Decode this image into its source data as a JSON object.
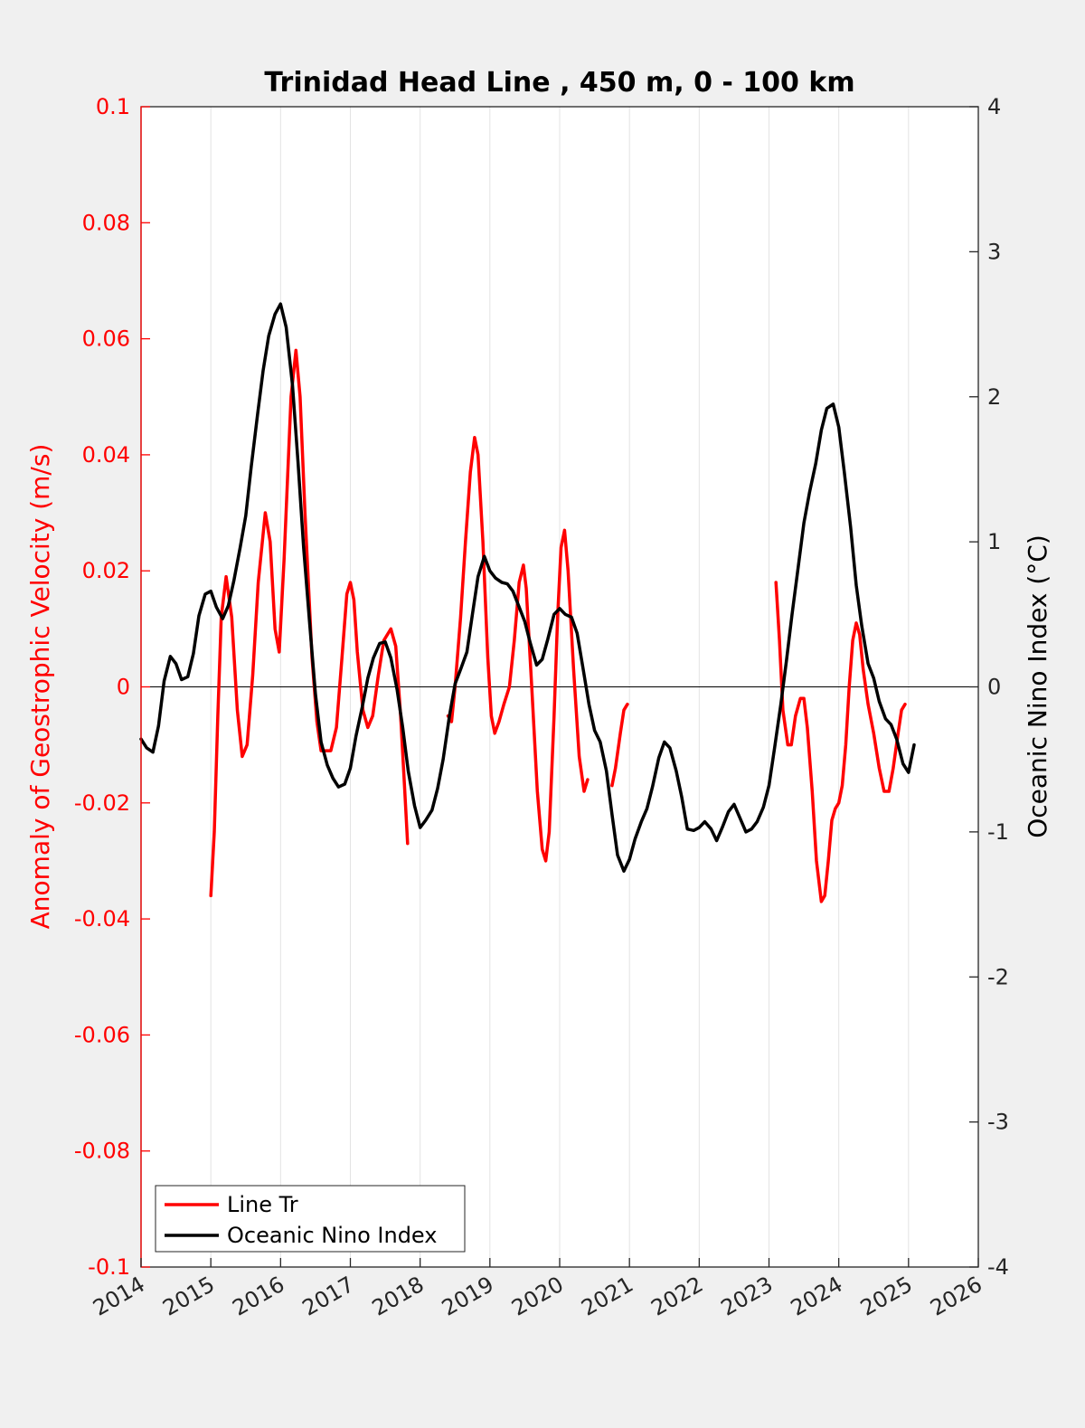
{
  "chart_data": {
    "type": "line",
    "title": "Trinidad Head Line , 450 m, 0 - 100 km",
    "ylabel_left": "Anomaly of Geostrophic Velocity (m/s)",
    "ylabel_right": "Oceanic Nino Index (°C)",
    "xlabel": "",
    "xlim": [
      2014,
      2026
    ],
    "ylim_left": [
      -0.1,
      0.1
    ],
    "ylim_right": [
      -4,
      4
    ],
    "x_ticks": [
      2014,
      2015,
      2016,
      2017,
      2018,
      2019,
      2020,
      2021,
      2022,
      2023,
      2024,
      2025,
      2026
    ],
    "x_tick_labels": [
      "2014",
      "2015",
      "2016",
      "2017",
      "2018",
      "2019",
      "2020",
      "2021",
      "2022",
      "2023",
      "2024",
      "2025",
      "2026"
    ],
    "y_left_ticks": [
      0.1,
      0.08,
      0.06,
      0.04,
      0.02,
      0,
      -0.02,
      -0.04,
      -0.06,
      -0.08,
      -0.1
    ],
    "y_left_tick_labels": [
      "0.1",
      "0.08",
      "0.06",
      "0.04",
      "0.02",
      "0",
      "-0.02",
      "-0.04",
      "-0.06",
      "-0.08",
      "-0.1"
    ],
    "y_right_ticks": [
      4,
      3,
      2,
      1,
      0,
      -1,
      -2,
      -3,
      -4
    ],
    "y_right_tick_labels": [
      "4",
      "3",
      "2",
      "1",
      "0",
      "-1",
      "-2",
      "-3",
      "-4"
    ],
    "grid": "vertical lines at x ticks",
    "zero_line": true,
    "legend_position": "bottom-left",
    "series": [
      {
        "name": "Line Tr",
        "axis": "left",
        "color": "#ff0000",
        "segments": [
          [
            [
              2015.0,
              -0.036
            ],
            [
              2015.05,
              -0.025
            ],
            [
              2015.1,
              -0.005
            ],
            [
              2015.15,
              0.012
            ],
            [
              2015.22,
              0.019
            ],
            [
              2015.3,
              0.012
            ],
            [
              2015.38,
              -0.004
            ],
            [
              2015.45,
              -0.012
            ],
            [
              2015.52,
              -0.01
            ],
            [
              2015.6,
              0.002
            ],
            [
              2015.68,
              0.018
            ],
            [
              2015.78,
              0.03
            ],
            [
              2015.85,
              0.025
            ],
            [
              2015.92,
              0.01
            ],
            [
              2015.98,
              0.006
            ],
            [
              2016.05,
              0.022
            ],
            [
              2016.15,
              0.05
            ],
            [
              2016.22,
              0.058
            ],
            [
              2016.28,
              0.05
            ],
            [
              2016.35,
              0.03
            ],
            [
              2016.45,
              0.005
            ],
            [
              2016.52,
              -0.006
            ],
            [
              2016.58,
              -0.011
            ],
            [
              2016.65,
              -0.011
            ],
            [
              2016.72,
              -0.011
            ],
            [
              2016.8,
              -0.007
            ],
            [
              2016.88,
              0.005
            ],
            [
              2016.95,
              0.016
            ],
            [
              2017.0,
              0.018
            ],
            [
              2017.05,
              0.015
            ],
            [
              2017.1,
              0.006
            ],
            [
              2017.18,
              -0.004
            ],
            [
              2017.25,
              -0.007
            ],
            [
              2017.32,
              -0.005
            ],
            [
              2017.4,
              0.002
            ],
            [
              2017.48,
              0.008
            ],
            [
              2017.58,
              0.01
            ],
            [
              2017.65,
              0.007
            ],
            [
              2017.72,
              -0.005
            ],
            [
              2017.78,
              -0.018
            ],
            [
              2017.82,
              -0.027
            ]
          ],
          [
            [
              2018.4,
              -0.005
            ],
            [
              2018.45,
              -0.006
            ],
            [
              2018.5,
              0.0
            ],
            [
              2018.58,
              0.012
            ],
            [
              2018.65,
              0.025
            ],
            [
              2018.72,
              0.037
            ],
            [
              2018.78,
              0.043
            ],
            [
              2018.83,
              0.04
            ],
            [
              2018.9,
              0.025
            ],
            [
              2018.97,
              0.005
            ],
            [
              2019.02,
              -0.005
            ],
            [
              2019.07,
              -0.008
            ],
            [
              2019.13,
              -0.006
            ],
            [
              2019.2,
              -0.003
            ],
            [
              2019.28,
              0.0
            ],
            [
              2019.35,
              0.008
            ],
            [
              2019.42,
              0.018
            ],
            [
              2019.48,
              0.021
            ],
            [
              2019.52,
              0.017
            ],
            [
              2019.6,
              0.0
            ],
            [
              2019.68,
              -0.018
            ],
            [
              2019.75,
              -0.028
            ],
            [
              2019.8,
              -0.03
            ],
            [
              2019.85,
              -0.025
            ],
            [
              2019.92,
              -0.005
            ],
            [
              2019.97,
              0.012
            ],
            [
              2020.02,
              0.024
            ],
            [
              2020.07,
              0.027
            ],
            [
              2020.12,
              0.02
            ],
            [
              2020.2,
              0.003
            ],
            [
              2020.28,
              -0.012
            ],
            [
              2020.35,
              -0.018
            ],
            [
              2020.4,
              -0.016
            ]
          ],
          [
            [
              2020.75,
              -0.017
            ],
            [
              2020.8,
              -0.014
            ],
            [
              2020.87,
              -0.008
            ],
            [
              2020.92,
              -0.004
            ],
            [
              2020.97,
              -0.003
            ]
          ],
          [
            [
              2023.1,
              0.018
            ],
            [
              2023.15,
              0.008
            ],
            [
              2023.2,
              -0.004
            ],
            [
              2023.27,
              -0.01
            ],
            [
              2023.32,
              -0.01
            ],
            [
              2023.38,
              -0.005
            ],
            [
              2023.45,
              -0.002
            ],
            [
              2023.5,
              -0.002
            ],
            [
              2023.55,
              -0.007
            ],
            [
              2023.62,
              -0.018
            ],
            [
              2023.68,
              -0.03
            ],
            [
              2023.75,
              -0.037
            ],
            [
              2023.8,
              -0.036
            ],
            [
              2023.85,
              -0.03
            ],
            [
              2023.9,
              -0.023
            ],
            [
              2023.95,
              -0.021
            ],
            [
              2024.0,
              -0.02
            ],
            [
              2024.05,
              -0.017
            ],
            [
              2024.1,
              -0.01
            ],
            [
              2024.15,
              0.0
            ],
            [
              2024.2,
              0.008
            ],
            [
              2024.25,
              0.011
            ],
            [
              2024.3,
              0.009
            ],
            [
              2024.35,
              0.003
            ],
            [
              2024.42,
              -0.003
            ],
            [
              2024.5,
              -0.008
            ],
            [
              2024.58,
              -0.014
            ],
            [
              2024.65,
              -0.018
            ],
            [
              2024.72,
              -0.018
            ],
            [
              2024.78,
              -0.014
            ],
            [
              2024.85,
              -0.008
            ],
            [
              2024.9,
              -0.004
            ],
            [
              2024.95,
              -0.003
            ]
          ]
        ]
      },
      {
        "name": "Oceanic Nino Index",
        "axis": "right",
        "color": "#000000",
        "segments": [
          [
            [
              2014.0,
              -0.36
            ],
            [
              2014.08,
              -0.42
            ],
            [
              2014.17,
              -0.45
            ],
            [
              2014.25,
              -0.27
            ],
            [
              2014.33,
              0.04
            ],
            [
              2014.42,
              0.21
            ],
            [
              2014.5,
              0.16
            ],
            [
              2014.58,
              0.05
            ],
            [
              2014.67,
              0.07
            ],
            [
              2014.75,
              0.23
            ],
            [
              2014.83,
              0.49
            ],
            [
              2014.92,
              0.64
            ],
            [
              2015.0,
              0.66
            ],
            [
              2015.08,
              0.55
            ],
            [
              2015.17,
              0.47
            ],
            [
              2015.25,
              0.56
            ],
            [
              2015.33,
              0.73
            ],
            [
              2015.42,
              0.96
            ],
            [
              2015.5,
              1.18
            ],
            [
              2015.58,
              1.52
            ],
            [
              2015.67,
              1.88
            ],
            [
              2015.75,
              2.18
            ],
            [
              2015.83,
              2.42
            ],
            [
              2015.92,
              2.57
            ],
            [
              2016.0,
              2.64
            ],
            [
              2016.08,
              2.48
            ],
            [
              2016.17,
              2.08
            ],
            [
              2016.25,
              1.55
            ],
            [
              2016.33,
              0.96
            ],
            [
              2016.42,
              0.42
            ],
            [
              2016.5,
              -0.05
            ],
            [
              2016.58,
              -0.38
            ],
            [
              2016.67,
              -0.54
            ],
            [
              2016.75,
              -0.63
            ],
            [
              2016.83,
              -0.69
            ],
            [
              2016.92,
              -0.67
            ],
            [
              2017.0,
              -0.56
            ],
            [
              2017.08,
              -0.34
            ],
            [
              2017.17,
              -0.14
            ],
            [
              2017.25,
              0.06
            ],
            [
              2017.33,
              0.2
            ],
            [
              2017.42,
              0.3
            ],
            [
              2017.5,
              0.31
            ],
            [
              2017.58,
              0.2
            ],
            [
              2017.67,
              -0.02
            ],
            [
              2017.75,
              -0.28
            ],
            [
              2017.83,
              -0.58
            ],
            [
              2017.92,
              -0.82
            ],
            [
              2018.0,
              -0.97
            ],
            [
              2018.08,
              -0.92
            ],
            [
              2018.17,
              -0.85
            ],
            [
              2018.25,
              -0.7
            ],
            [
              2018.33,
              -0.5
            ],
            [
              2018.42,
              -0.2
            ],
            [
              2018.5,
              0.02
            ],
            [
              2018.58,
              0.12
            ],
            [
              2018.67,
              0.24
            ],
            [
              2018.75,
              0.5
            ],
            [
              2018.83,
              0.76
            ],
            [
              2018.92,
              0.9
            ],
            [
              2019.0,
              0.8
            ],
            [
              2019.08,
              0.75
            ],
            [
              2019.17,
              0.72
            ],
            [
              2019.25,
              0.71
            ],
            [
              2019.33,
              0.66
            ],
            [
              2019.42,
              0.55
            ],
            [
              2019.5,
              0.45
            ],
            [
              2019.58,
              0.3
            ],
            [
              2019.67,
              0.15
            ],
            [
              2019.75,
              0.19
            ],
            [
              2019.83,
              0.33
            ],
            [
              2019.92,
              0.5
            ],
            [
              2020.0,
              0.54
            ],
            [
              2020.08,
              0.5
            ],
            [
              2020.17,
              0.48
            ],
            [
              2020.25,
              0.37
            ],
            [
              2020.33,
              0.14
            ],
            [
              2020.42,
              -0.12
            ],
            [
              2020.5,
              -0.3
            ],
            [
              2020.58,
              -0.38
            ],
            [
              2020.67,
              -0.58
            ],
            [
              2020.75,
              -0.88
            ],
            [
              2020.83,
              -1.16
            ],
            [
              2020.92,
              -1.27
            ],
            [
              2021.0,
              -1.19
            ],
            [
              2021.08,
              -1.05
            ],
            [
              2021.17,
              -0.93
            ],
            [
              2021.25,
              -0.84
            ],
            [
              2021.33,
              -0.69
            ],
            [
              2021.42,
              -0.49
            ],
            [
              2021.5,
              -0.38
            ],
            [
              2021.58,
              -0.42
            ],
            [
              2021.67,
              -0.58
            ],
            [
              2021.75,
              -0.76
            ],
            [
              2021.83,
              -0.98
            ],
            [
              2021.92,
              -0.99
            ],
            [
              2022.0,
              -0.97
            ],
            [
              2022.08,
              -0.93
            ],
            [
              2022.17,
              -0.98
            ],
            [
              2022.25,
              -1.06
            ],
            [
              2022.33,
              -0.97
            ],
            [
              2022.42,
              -0.86
            ],
            [
              2022.5,
              -0.81
            ],
            [
              2022.58,
              -0.9
            ],
            [
              2022.67,
              -1.0
            ],
            [
              2022.75,
              -0.98
            ],
            [
              2022.83,
              -0.93
            ],
            [
              2022.92,
              -0.83
            ],
            [
              2023.0,
              -0.68
            ],
            [
              2023.08,
              -0.42
            ],
            [
              2023.17,
              -0.12
            ],
            [
              2023.25,
              0.18
            ],
            [
              2023.33,
              0.5
            ],
            [
              2023.42,
              0.83
            ],
            [
              2023.5,
              1.13
            ],
            [
              2023.58,
              1.34
            ],
            [
              2023.67,
              1.54
            ],
            [
              2023.75,
              1.77
            ],
            [
              2023.83,
              1.92
            ],
            [
              2023.92,
              1.95
            ],
            [
              2024.0,
              1.79
            ],
            [
              2024.08,
              1.48
            ],
            [
              2024.17,
              1.1
            ],
            [
              2024.25,
              0.7
            ],
            [
              2024.33,
              0.42
            ],
            [
              2024.42,
              0.16
            ],
            [
              2024.5,
              0.06
            ],
            [
              2024.58,
              -0.1
            ],
            [
              2024.67,
              -0.22
            ],
            [
              2024.75,
              -0.26
            ],
            [
              2024.83,
              -0.36
            ],
            [
              2024.92,
              -0.53
            ],
            [
              2025.0,
              -0.59
            ],
            [
              2025.08,
              -0.4
            ]
          ]
        ]
      }
    ]
  }
}
